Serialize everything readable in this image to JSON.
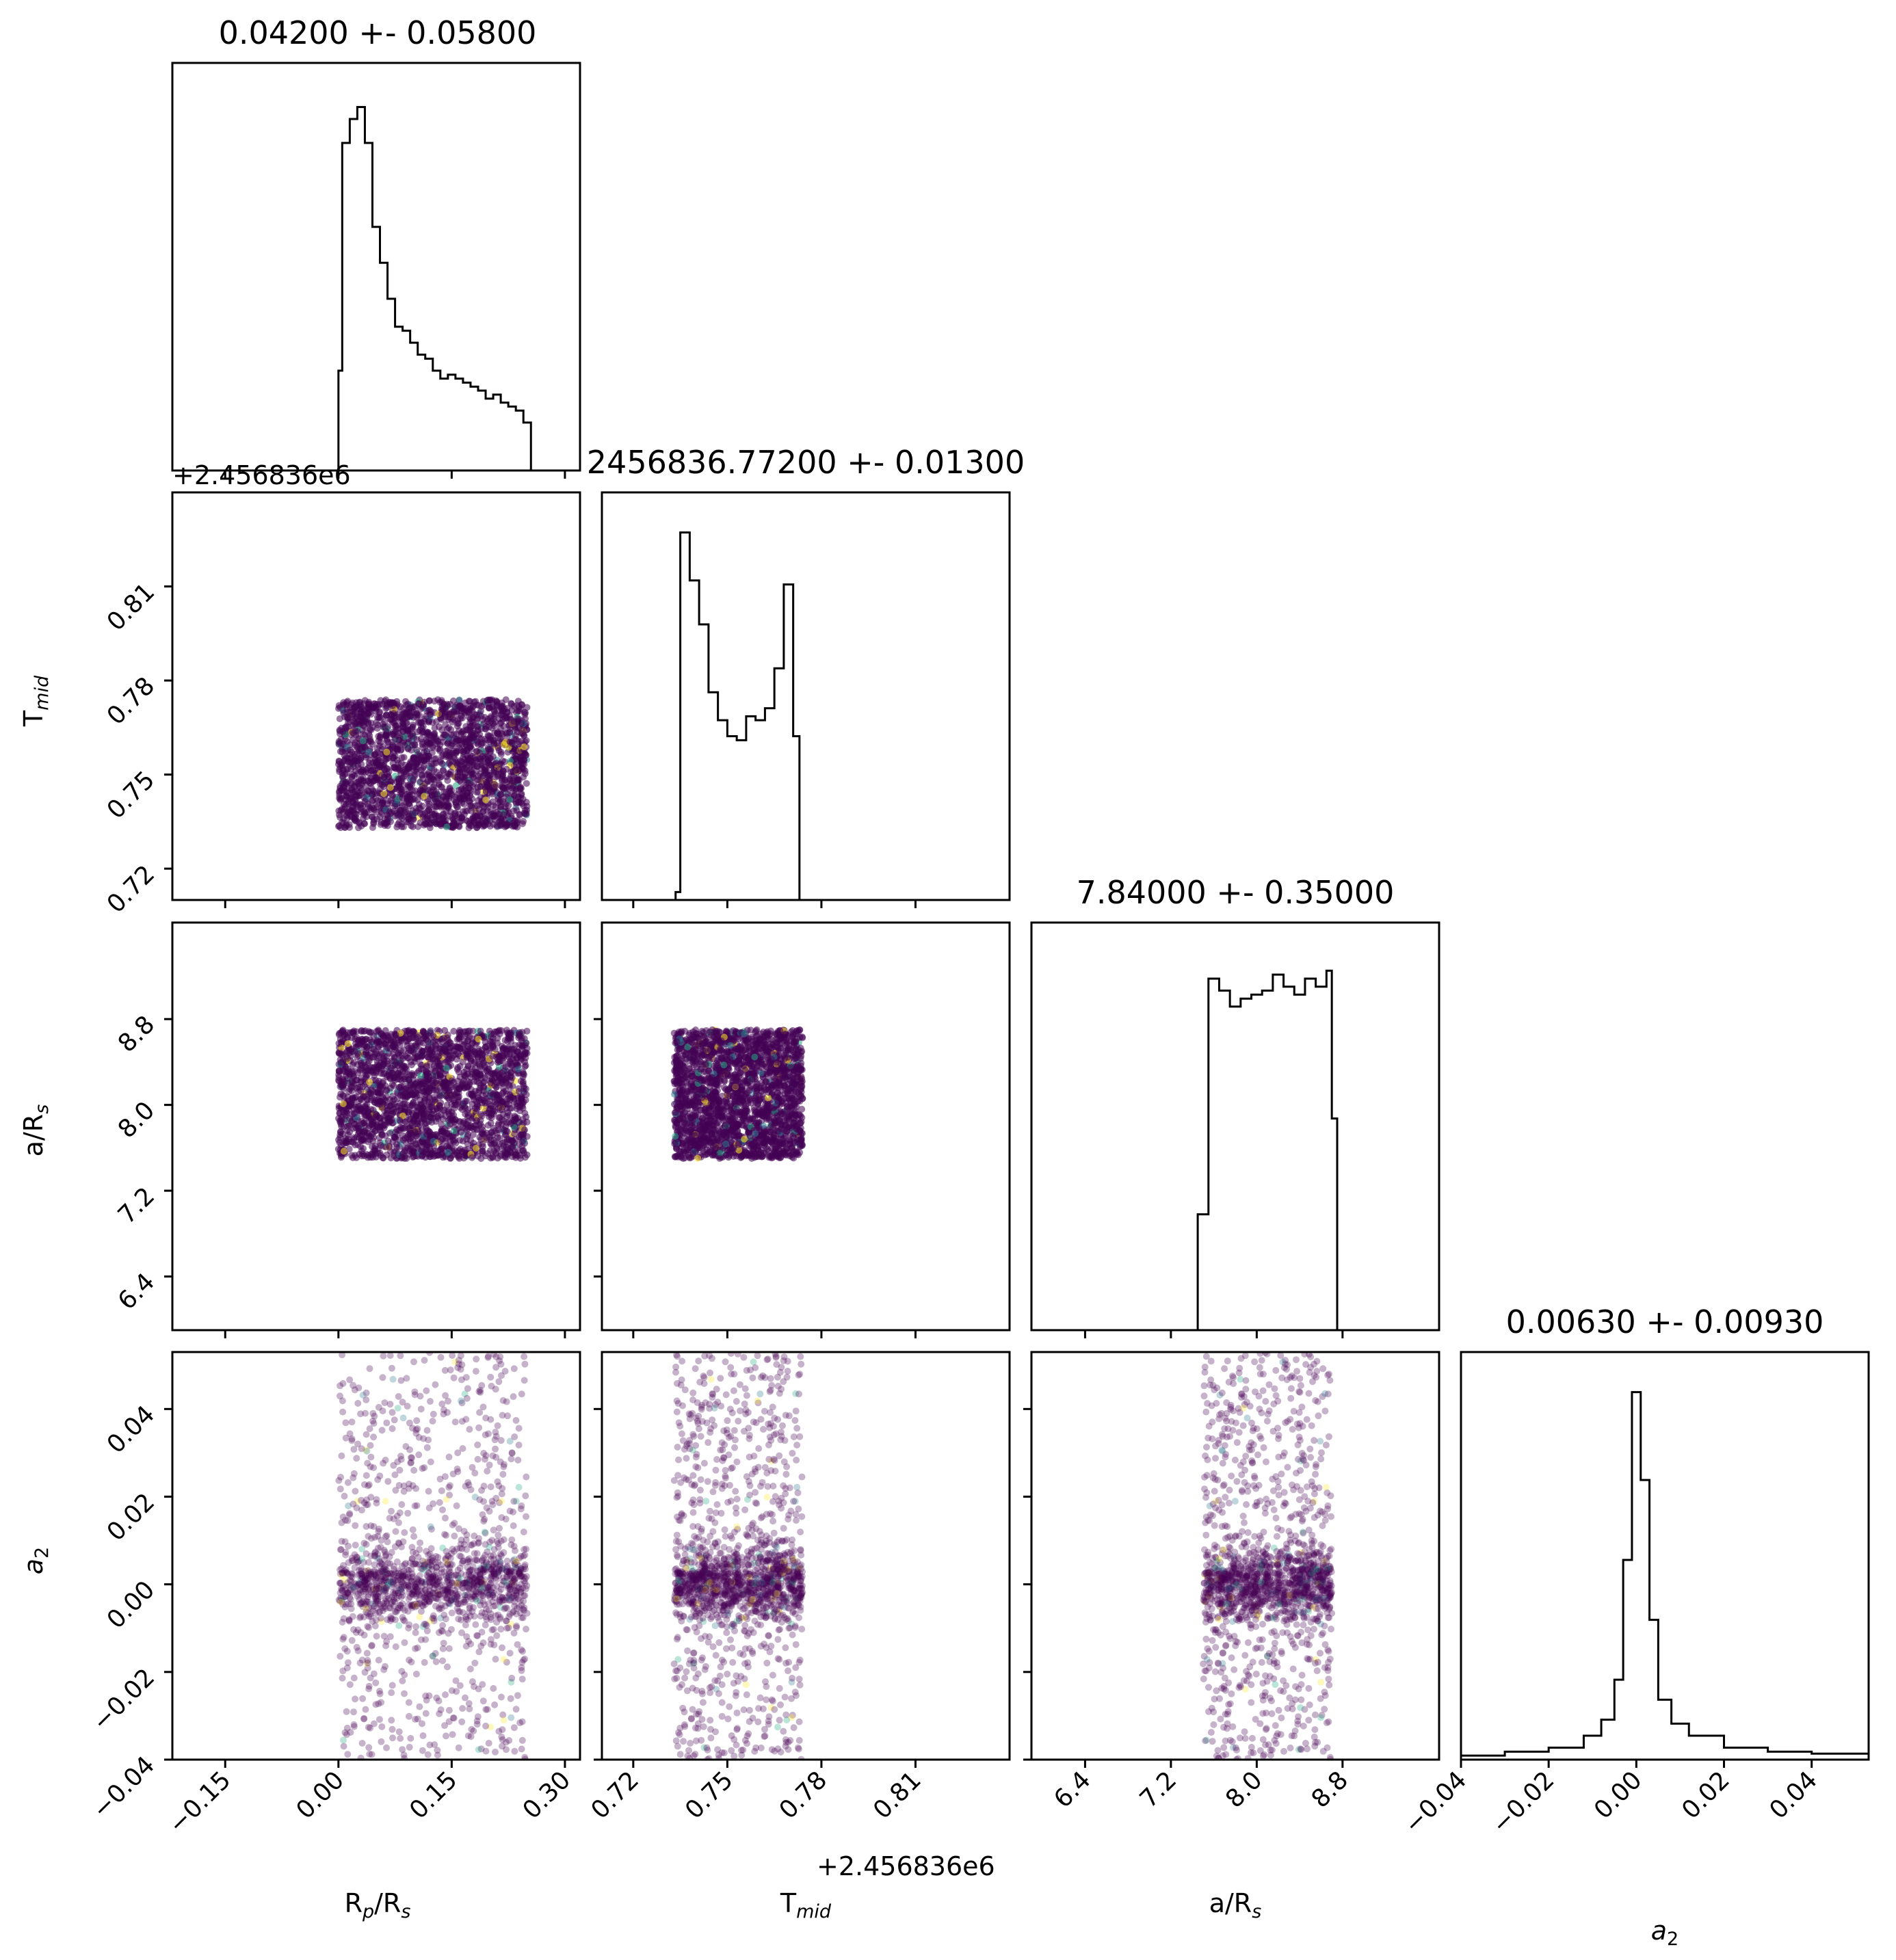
{
  "chart_data": {
    "type": "scatter",
    "variant": "corner-plot",
    "parameters": [
      "R_p/R_s",
      "T_mid",
      "a/R_s",
      "a_2"
    ],
    "axis_labels": {
      "R_p/R_s": {
        "main": "R",
        "sub1": "p",
        "mid": "/R",
        "sub2": "s"
      },
      "T_mid": {
        "main": "T",
        "sub1": "mid"
      },
      "a/R_s": {
        "main": "a/R",
        "sub1": "s"
      },
      "a_2": {
        "main": "a",
        "sub1": "2"
      }
    },
    "titles": [
      "0.04200 +- 0.05800",
      "2456836.77200 +- 0.01300",
      "7.84000 +- 0.35000",
      "0.00630 +- 0.00930"
    ],
    "offset_text": "+2.456836e6",
    "ranges": {
      "R_p/R_s": [
        -0.22,
        0.32
      ],
      "T_mid": [
        0.71,
        0.84
      ],
      "a/R_s": [
        5.9,
        9.7
      ],
      "a_2": [
        -0.04,
        0.053
      ]
    },
    "ticks": {
      "R_p/R_s": {
        "values": [
          -0.15,
          0.0,
          0.15,
          0.3
        ],
        "labels": [
          "−0.15",
          "0.00",
          "0.15",
          "0.30"
        ]
      },
      "T_mid": {
        "values": [
          0.72,
          0.75,
          0.78,
          0.81
        ],
        "labels": [
          "0.72",
          "0.75",
          "0.78",
          "0.81"
        ]
      },
      "a/R_s": {
        "values": [
          6.4,
          7.2,
          8.0,
          8.8
        ],
        "labels": [
          "6.4",
          "7.2",
          "8.0",
          "8.8"
        ]
      },
      "a_2": {
        "values": [
          -0.04,
          -0.02,
          0.0,
          0.02,
          0.04
        ],
        "labels": [
          "−0.04",
          "−0.02",
          "0.00",
          "0.02",
          "0.04"
        ]
      }
    },
    "histograms": {
      "R_p/R_s": {
        "edges": [
          -0.22,
          0.32
        ],
        "bins": 60,
        "counts": [
          0,
          0,
          0,
          0,
          0,
          0,
          0,
          0,
          0,
          0,
          0,
          0,
          0,
          0,
          0,
          0,
          0,
          0,
          0,
          0,
          0,
          0,
          0,
          0,
          0,
          0,
          0,
          0,
          0,
          0,
          0,
          0,
          0,
          0,
          0,
          0,
          0,
          0,
          0,
          0,
          0,
          0,
          0,
          0,
          0,
          0,
          0,
          0,
          0,
          0,
          0,
          0,
          0,
          0,
          0,
          0,
          0,
          0,
          0,
          0
        ]
      },
      "T_mid": {
        "bins": 50
      },
      "a/R_s": {
        "bins": 50
      },
      "a_2": {
        "bins": 60
      }
    },
    "histogram_shapes": {
      "R_p/R_s": [
        [
          -0.22,
          0
        ],
        [
          0.0,
          0
        ],
        [
          0.0,
          0.25
        ],
        [
          0.005,
          0.82
        ],
        [
          0.015,
          0.88
        ],
        [
          0.025,
          0.91
        ],
        [
          0.035,
          0.82
        ],
        [
          0.045,
          0.61
        ],
        [
          0.055,
          0.52
        ],
        [
          0.065,
          0.43
        ],
        [
          0.075,
          0.36
        ],
        [
          0.085,
          0.35
        ],
        [
          0.095,
          0.32
        ],
        [
          0.105,
          0.29
        ],
        [
          0.115,
          0.28
        ],
        [
          0.125,
          0.25
        ],
        [
          0.135,
          0.23
        ],
        [
          0.145,
          0.24
        ],
        [
          0.155,
          0.23
        ],
        [
          0.165,
          0.22
        ],
        [
          0.175,
          0.21
        ],
        [
          0.185,
          0.2
        ],
        [
          0.195,
          0.18
        ],
        [
          0.205,
          0.19
        ],
        [
          0.215,
          0.17
        ],
        [
          0.225,
          0.16
        ],
        [
          0.235,
          0.15
        ],
        [
          0.245,
          0.12
        ],
        [
          0.255,
          0.0
        ],
        [
          0.32,
          0
        ]
      ],
      "T_mid": [
        [
          0.71,
          0
        ],
        [
          0.7325,
          0
        ],
        [
          0.7335,
          0.02
        ],
        [
          0.735,
          0.92
        ],
        [
          0.738,
          0.8
        ],
        [
          0.741,
          0.69
        ],
        [
          0.744,
          0.52
        ],
        [
          0.747,
          0.45
        ],
        [
          0.75,
          0.41
        ],
        [
          0.753,
          0.4
        ],
        [
          0.756,
          0.46
        ],
        [
          0.759,
          0.45
        ],
        [
          0.762,
          0.48
        ],
        [
          0.765,
          0.58
        ],
        [
          0.768,
          0.79
        ],
        [
          0.771,
          0.41
        ],
        [
          0.773,
          0
        ],
        [
          0.84,
          0
        ]
      ],
      "a/R_s": [
        [
          5.9,
          0
        ],
        [
          7.4,
          0
        ],
        [
          7.45,
          0.29
        ],
        [
          7.55,
          0.88
        ],
        [
          7.65,
          0.85
        ],
        [
          7.75,
          0.81
        ],
        [
          7.85,
          0.83
        ],
        [
          7.95,
          0.84
        ],
        [
          8.05,
          0.85
        ],
        [
          8.15,
          0.89
        ],
        [
          8.25,
          0.86
        ],
        [
          8.35,
          0.84
        ],
        [
          8.45,
          0.88
        ],
        [
          8.55,
          0.86
        ],
        [
          8.65,
          0.9
        ],
        [
          8.7,
          0.53
        ],
        [
          8.75,
          0
        ],
        [
          9.7,
          0
        ]
      ],
      "a_2": [
        [
          -0.04,
          0.01
        ],
        [
          -0.03,
          0.02
        ],
        [
          -0.02,
          0.03
        ],
        [
          -0.012,
          0.06
        ],
        [
          -0.008,
          0.1
        ],
        [
          -0.005,
          0.2
        ],
        [
          -0.003,
          0.5
        ],
        [
          -0.001,
          0.92
        ],
        [
          0.001,
          0.7
        ],
        [
          0.003,
          0.35
        ],
        [
          0.005,
          0.15
        ],
        [
          0.008,
          0.09
        ],
        [
          0.012,
          0.06
        ],
        [
          0.02,
          0.03
        ],
        [
          0.03,
          0.02
        ],
        [
          0.04,
          0.015
        ],
        [
          0.053,
          0.01
        ]
      ]
    },
    "scatter_panels": [
      {
        "x": "R_p/R_s",
        "y": "T_mid",
        "x_range": [
          0.0,
          0.25
        ],
        "y_range": [
          0.733,
          0.774
        ],
        "density": "uniform"
      },
      {
        "x": "R_p/R_s",
        "y": "a/R_s",
        "x_range": [
          0.0,
          0.25
        ],
        "y_range": [
          7.5,
          8.7
        ],
        "density": "uniform"
      },
      {
        "x": "T_mid",
        "y": "a/R_s",
        "x_range": [
          0.733,
          0.774
        ],
        "y_range": [
          7.5,
          8.7
        ],
        "density": "uniform"
      },
      {
        "x": "R_p/R_s",
        "y": "a_2",
        "x_range": [
          0.0,
          0.25
        ],
        "y_range": [
          -0.04,
          0.053
        ],
        "density": "concentrated-at-zero"
      },
      {
        "x": "T_mid",
        "y": "a_2",
        "x_range": [
          0.733,
          0.774
        ],
        "y_range": [
          -0.04,
          0.053
        ],
        "density": "concentrated-at-zero"
      },
      {
        "x": "a/R_s",
        "y": "a_2",
        "x_range": [
          7.5,
          8.7
        ],
        "y_range": [
          -0.04,
          0.053
        ],
        "density": "concentrated-at-zero"
      }
    ],
    "colors": {
      "points": "#440154",
      "points_highlight": [
        "#2a788e",
        "#22a884",
        "#fde725"
      ],
      "hist_line": "#000000",
      "axis": "#000000"
    },
    "grid": false,
    "legend": "none"
  }
}
